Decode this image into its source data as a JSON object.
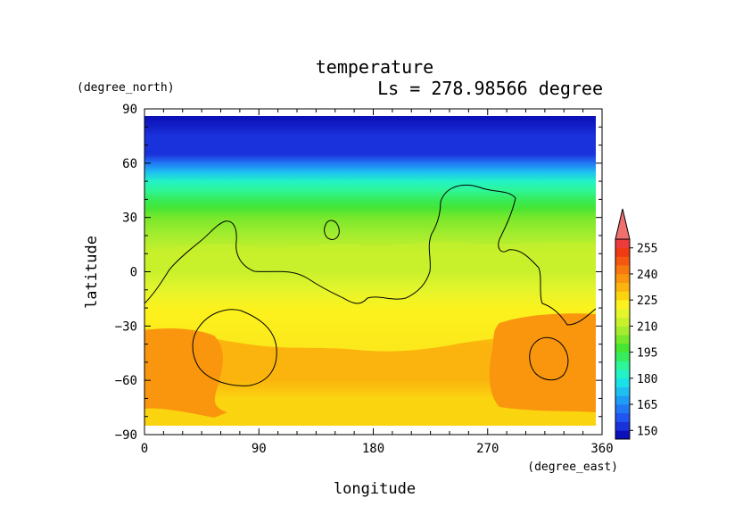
{
  "chart_data": {
    "type": "heatmap",
    "title": "temperature",
    "subtitle": "Ls = 278.98566 degree",
    "xlabel": "longitude",
    "ylabel": "latitude",
    "xunit": "(degree_east)",
    "yunit": "(degree_north)",
    "xlim": [
      0,
      360
    ],
    "ylim": [
      -90,
      90
    ],
    "xticks": [
      "0",
      "90",
      "180",
      "270",
      "360"
    ],
    "yticks": [
      "90",
      "60",
      "30",
      "0",
      "−30",
      "−60",
      "−90"
    ],
    "colorbar": {
      "levels": [
        145,
        150,
        155,
        160,
        165,
        170,
        175,
        180,
        185,
        190,
        195,
        200,
        205,
        210,
        215,
        220,
        225,
        230,
        235,
        240,
        245,
        250,
        255,
        260
      ],
      "colors": [
        "#0c10b8",
        "#1a32dc",
        "#1f55f0",
        "#2277f5",
        "#1f9cf5",
        "#1ec0f2",
        "#1ae3e8",
        "#22f2c6",
        "#2ef597",
        "#36ec5c",
        "#46e634",
        "#78e82c",
        "#a6ec2e",
        "#c8f12c",
        "#e4f52c",
        "#fbf21e",
        "#fbd410",
        "#fbb40e",
        "#f9960e",
        "#f7780e",
        "#f45810",
        "#f03a12",
        "#ed3a3a",
        "#f07070"
      ],
      "tick_labels": [
        "150",
        "165",
        "180",
        "195",
        "210",
        "225",
        "240",
        "255"
      ],
      "extend": "max"
    },
    "temperature_by_latitude": {
      "latitudes": [
        85,
        75,
        65,
        60,
        55,
        50,
        45,
        40,
        35,
        30,
        20,
        10,
        0,
        -10,
        -20,
        -30,
        -40,
        -50,
        -60,
        -70,
        -80
      ],
      "values": [
        148,
        150,
        154,
        162,
        172,
        180,
        186,
        192,
        196,
        200,
        205,
        210,
        212,
        218,
        222,
        226,
        230,
        232,
        230,
        228,
        228
      ]
    },
    "warm_regions": [
      {
        "lon_range": [
          0,
          60
        ],
        "lat_range": [
          -75,
          -30
        ],
        "value": 236
      },
      {
        "lon_range": [
          285,
          360
        ],
        "lat_range": [
          -65,
          -20
        ],
        "value": 236
      }
    ]
  }
}
